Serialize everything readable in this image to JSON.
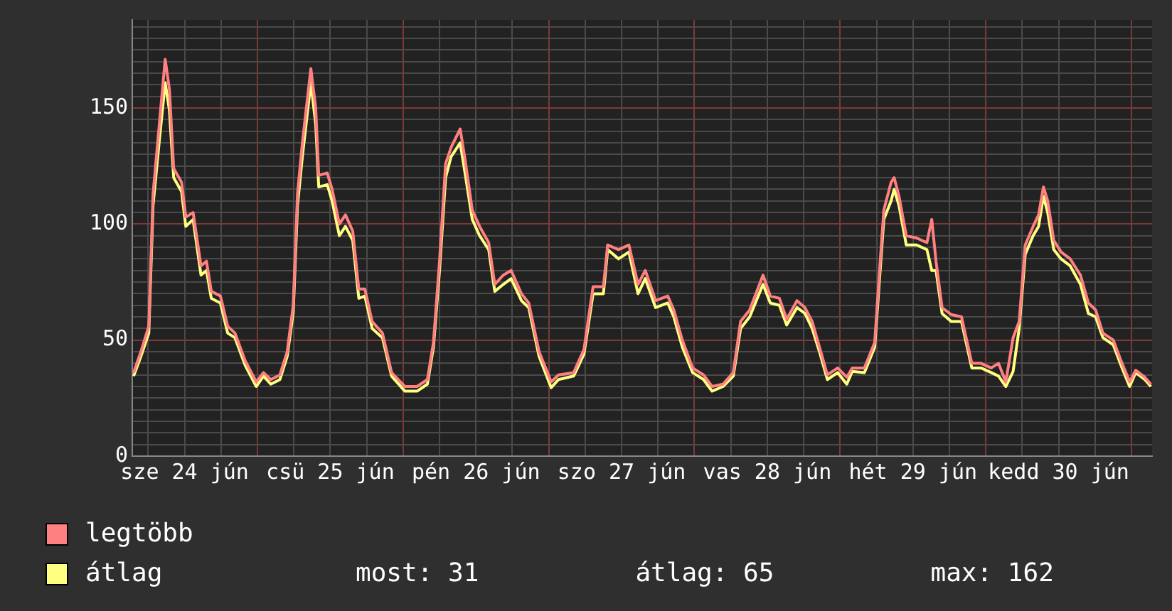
{
  "chart_data": {
    "type": "line",
    "x": [
      "--06-24T03:36",
      "--06-24T04:48",
      "--06-24T06:06",
      "--06-24T06:48",
      "--06-24T07:48",
      "--06-24T08:48",
      "--06-24T09:30",
      "--06-24T10:12",
      "--06-24T11:30",
      "--06-24T12:12",
      "--06-24T13:24",
      "--06-24T14:42",
      "--06-24T15:36",
      "--06-24T16:24",
      "--06-24T17:54",
      "--06-24T19:06",
      "--06-24T20:18",
      "--06-24T22:00",
      "--06-24T23:48",
      "--06-25T01:00",
      "--06-25T02:12",
      "--06-25T03:42",
      "--06-25T04:54",
      "--06-25T05:54",
      "--06-25T06:36",
      "--06-25T07:24",
      "--06-25T08:48",
      "--06-25T09:36",
      "--06-25T10:06",
      "--06-25T11:30",
      "--06-25T12:18",
      "--06-25T13:30",
      "--06-25T14:30",
      "--06-25T15:42",
      "--06-25T16:42",
      "--06-25T17:42",
      "--06-25T18:54",
      "--06-25T20:36",
      "--06-25T22:06",
      "--06-26T00:18",
      "--06-26T02:18",
      "--06-26T04:00",
      "--06-26T05:00",
      "--06-26T06:00",
      "--06-26T07:00",
      "--06-26T07:54",
      "--06-26T09:24",
      "--06-26T10:12",
      "--06-26T11:24",
      "--06-26T12:36",
      "--06-26T14:06",
      "--06-26T15:06",
      "--06-26T16:30",
      "--06-26T17:48",
      "--06-26T19:30",
      "--06-26T20:42",
      "--06-26T22:24",
      "--06-27T00:24",
      "--06-27T01:36",
      "--06-27T04:06",
      "--06-27T05:48",
      "--06-27T07:18",
      "--06-27T09:00",
      "--06-27T09:42",
      "--06-27T11:30",
      "--06-27T13:12",
      "--06-27T14:42",
      "--06-27T15:54",
      "--06-27T17:36",
      "--06-27T19:36",
      "--06-27T20:36",
      "--06-27T22:00",
      "--06-27T23:42",
      "--06-28T01:30",
      "--06-28T02:54",
      "--06-28T04:42",
      "--06-28T06:24",
      "--06-28T07:36",
      "--06-28T09:06",
      "--06-28T11:18",
      "--06-28T12:30",
      "--06-28T14:00",
      "--06-28T15:12",
      "--06-28T16:54",
      "--06-28T18:12",
      "--06-28T19:24",
      "--06-28T20:36",
      "--06-28T21:54",
      "--06-28T23:36",
      "--06-29T01:06",
      "--06-29T02:00",
      "--06-29T04:00",
      "--06-29T05:42",
      "--06-29T06:30",
      "--06-29T07:12",
      "--06-29T08:24",
      "--06-29T08:54",
      "--06-29T09:42",
      "--06-29T10:54",
      "--06-29T12:36",
      "--06-29T14:18",
      "--06-29T15:06",
      "--06-29T15:48",
      "--06-29T16:48",
      "--06-29T18:18",
      "--06-29T20:00",
      "--06-29T21:42",
      "--06-29T23:12",
      "--06-30T00:54",
      "--06-30T02:06",
      "--06-30T03:18",
      "--06-30T04:30",
      "--06-30T05:30",
      "--06-30T06:30",
      "--06-30T07:48",
      "--06-30T08:42",
      "--06-30T09:30",
      "--06-30T10:12",
      "--06-30T11:12",
      "--06-30T12:24",
      "--06-30T13:54",
      "--06-30T15:36",
      "--06-30T16:54",
      "--06-30T18:06",
      "--06-30T19:18",
      "--06-30T21:00",
      "--06-30T22:18",
      "--06-30T23:42",
      "--07-01T00:42",
      "--07-01T02:12",
      "--07-01T03:12"
    ],
    "series": [
      {
        "name": "legtöbb",
        "color": "#ff8080",
        "values": [
          36,
          45,
          56,
          113,
          142,
          171,
          158,
          124,
          118,
          103,
          105,
          82,
          84,
          71,
          69,
          56,
          53,
          41,
          32,
          36,
          33,
          35,
          45,
          65,
          113,
          135,
          167,
          150,
          121,
          122,
          115,
          100,
          104,
          97,
          72,
          72,
          58,
          53,
          36,
          30,
          30,
          33,
          49,
          84,
          126,
          133,
          141,
          128,
          106,
          99,
          92,
          74,
          78,
          80,
          70,
          66,
          45,
          32,
          35,
          36,
          46,
          73,
          73,
          91,
          89,
          91,
          74,
          80,
          67,
          69,
          63,
          50,
          38,
          35,
          30,
          31,
          36,
          58,
          63,
          78,
          69,
          68,
          59,
          67,
          64,
          58,
          47,
          35,
          38,
          34,
          38,
          38,
          49,
          80,
          106,
          118,
          120,
          112,
          95,
          94,
          92,
          102,
          84,
          64,
          61,
          60,
          40,
          40,
          38,
          40,
          32,
          51,
          58,
          91,
          99,
          104,
          116,
          110,
          93,
          88,
          85,
          78,
          66,
          63,
          53,
          50,
          41,
          32,
          37,
          34,
          31
        ]
      },
      {
        "name": "átlag",
        "color": "#ffff80",
        "values": [
          34.5,
          43,
          53,
          108,
          135,
          161,
          149,
          120,
          114,
          99,
          102,
          78,
          80,
          68,
          66,
          53,
          51,
          39,
          30,
          34.5,
          31,
          33,
          43,
          62,
          108,
          129,
          161,
          143,
          116,
          117,
          110,
          95,
          99,
          93,
          68,
          69,
          55,
          51,
          34.5,
          28,
          28,
          31,
          47,
          80,
          120,
          129,
          135,
          122,
          102,
          95,
          89,
          71,
          74,
          76.5,
          67,
          64,
          43,
          29.5,
          33,
          34.5,
          44,
          70,
          70,
          89,
          85,
          88,
          70,
          76.5,
          64,
          66,
          60,
          47,
          36,
          33,
          28,
          30,
          34.5,
          55,
          60,
          74,
          66,
          65,
          56.5,
          64,
          61.5,
          55,
          45,
          33,
          36,
          31,
          36.5,
          36,
          47,
          76.5,
          102,
          110,
          115,
          108,
          91,
          91,
          89,
          80,
          80,
          61.5,
          58,
          58,
          38,
          38,
          36,
          34.5,
          30,
          36.5,
          55,
          87,
          95,
          99,
          112,
          105,
          89,
          85,
          82,
          74,
          61.5,
          60,
          51,
          48,
          39,
          30,
          36,
          33,
          30
        ]
      }
    ],
    "xlim": [
      "--06-24T03:24",
      "--07-01T03:24"
    ],
    "xticks": [
      {
        "value": "--06-24T06:00",
        "label": null
      },
      {
        "value": "--06-24T12:00",
        "label": "sze 24 jún"
      },
      {
        "value": "--06-24T18:00",
        "label": null
      },
      {
        "value": "--06-25T00:00",
        "label": null
      },
      {
        "value": "--06-25T06:00",
        "label": null
      },
      {
        "value": "--06-25T12:00",
        "label": "csü 25 jún"
      },
      {
        "value": "--06-25T18:00",
        "label": null
      },
      {
        "value": "--06-26T00:00",
        "label": null
      },
      {
        "value": "--06-26T06:00",
        "label": null
      },
      {
        "value": "--06-26T12:00",
        "label": "pén 26 jún"
      },
      {
        "value": "--06-26T18:00",
        "label": null
      },
      {
        "value": "--06-27T00:00",
        "label": null
      },
      {
        "value": "--06-27T06:00",
        "label": null
      },
      {
        "value": "--06-27T12:00",
        "label": "szo 27 jún"
      },
      {
        "value": "--06-27T18:00",
        "label": null
      },
      {
        "value": "--06-28T00:00",
        "label": null
      },
      {
        "value": "--06-28T06:00",
        "label": null
      },
      {
        "value": "--06-28T12:00",
        "label": "vas 28 jún"
      },
      {
        "value": "--06-28T18:00",
        "label": null
      },
      {
        "value": "--06-29T00:00",
        "label": null
      },
      {
        "value": "--06-29T06:00",
        "label": null
      },
      {
        "value": "--06-29T12:00",
        "label": "hét 29 jún"
      },
      {
        "value": "--06-29T18:00",
        "label": null
      },
      {
        "value": "--06-30T00:00",
        "label": null
      },
      {
        "value": "--06-30T06:00",
        "label": null
      },
      {
        "value": "--06-30T12:00",
        "label": "kedd 30 jún"
      },
      {
        "value": "--06-30T18:00",
        "label": null
      },
      {
        "value": "--07-01T00:00",
        "label": null
      }
    ],
    "ylim": [
      0,
      188
    ],
    "yticks": [
      0,
      {
        "value": 5,
        "label": null
      },
      {
        "value": 10,
        "label": null
      },
      {
        "value": 15,
        "label": null
      },
      {
        "value": 20,
        "label": null
      },
      {
        "value": 25,
        "label": null
      },
      {
        "value": 30,
        "label": null
      },
      {
        "value": 35,
        "label": null
      },
      {
        "value": 40,
        "label": null
      },
      {
        "value": 45,
        "label": null
      },
      50,
      {
        "value": 55,
        "label": null
      },
      {
        "value": 60,
        "label": null
      },
      {
        "value": 65,
        "label": null
      },
      {
        "value": 70,
        "label": null
      },
      {
        "value": 75,
        "label": null
      },
      {
        "value": 80,
        "label": null
      },
      {
        "value": 85,
        "label": null
      },
      {
        "value": 90,
        "label": null
      },
      {
        "value": 95,
        "label": null
      },
      100,
      {
        "value": 105,
        "label": null
      },
      {
        "value": 110,
        "label": null
      },
      {
        "value": 115,
        "label": null
      },
      {
        "value": 120,
        "label": null
      },
      {
        "value": 125,
        "label": null
      },
      {
        "value": 130,
        "label": null
      },
      {
        "value": 135,
        "label": null
      },
      {
        "value": 140,
        "label": null
      },
      {
        "value": 145,
        "label": null
      },
      150,
      {
        "value": 155,
        "label": null
      },
      {
        "value": 160,
        "label": null
      },
      {
        "value": 165,
        "label": null
      },
      {
        "value": 170,
        "label": null
      },
      {
        "value": 175,
        "label": null
      },
      {
        "value": 180,
        "label": null
      },
      {
        "value": 185,
        "label": null
      }
    ],
    "grid": true,
    "legend": "bottom left",
    "marker": "none",
    "line_style": "solid",
    "annotations": [
      "most: 31",
      "átlag: 65",
      "max: 162"
    ]
  }
}
